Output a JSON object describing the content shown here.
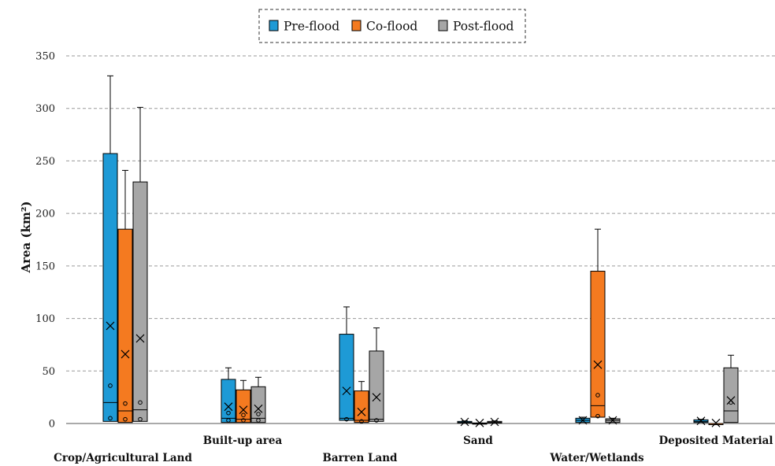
{
  "chart_data": {
    "type": "box",
    "title": "",
    "xlabel": "",
    "ylabel": "Area (km²)",
    "ylim": [
      0,
      350
    ],
    "yticks": [
      0,
      50,
      100,
      150,
      200,
      250,
      300,
      350
    ],
    "grid": true,
    "legend_position": "top-center",
    "categories": [
      "Crop/Agricultural Land",
      "Built-up area",
      "Barren Land",
      "Sand",
      "Water/Wetlands",
      "Deposited Material"
    ],
    "series": [
      {
        "name": "Pre-flood",
        "color": "#1E9AD6",
        "boxes": [
          {
            "min": 0,
            "q1": 2,
            "median": 20,
            "q3": 257,
            "max": 331,
            "mean": 93,
            "points": [
              36,
              5
            ]
          },
          {
            "min": 0,
            "q1": 1,
            "median": 5,
            "q3": 42,
            "max": 53,
            "mean": 16,
            "points": [
              10,
              3
            ]
          },
          {
            "min": 0,
            "q1": 3,
            "median": 5,
            "q3": 85,
            "max": 111,
            "mean": 31,
            "points": [
              4
            ]
          },
          {
            "min": 0,
            "q1": 0.5,
            "median": 1,
            "q3": 2,
            "max": 2.5,
            "mean": 1.5,
            "points": []
          },
          {
            "min": 0,
            "q1": 1,
            "median": 3,
            "q3": 5,
            "max": 6,
            "mean": 3,
            "points": []
          },
          {
            "min": 0,
            "q1": 1,
            "median": 2,
            "q3": 3.5,
            "max": 4,
            "mean": 2.5,
            "points": []
          }
        ]
      },
      {
        "name": "Co-flood",
        "color": "#F47A20",
        "boxes": [
          {
            "min": 0,
            "q1": 1,
            "median": 12,
            "q3": 185,
            "max": 241,
            "mean": 66,
            "points": [
              19,
              4
            ]
          },
          {
            "min": 0,
            "q1": 1,
            "median": 4,
            "q3": 32,
            "max": 41,
            "mean": 13,
            "points": [
              8,
              3
            ]
          },
          {
            "min": 0,
            "q1": 1,
            "median": 3,
            "q3": 31,
            "max": 40,
            "mean": 11,
            "points": [
              2
            ]
          },
          {
            "min": 0,
            "q1": 0,
            "median": 0,
            "q3": 0.5,
            "max": 0.5,
            "mean": 0.5,
            "points": []
          },
          {
            "min": 0,
            "q1": 6,
            "median": 17,
            "q3": 145,
            "max": 185,
            "mean": 56,
            "points": [
              27,
              7
            ]
          },
          {
            "min": 0,
            "q1": 0,
            "median": 0,
            "q3": 0,
            "max": 0,
            "mean": 0.5,
            "points": []
          }
        ]
      },
      {
        "name": "Post-flood",
        "color": "#A6A6A6",
        "boxes": [
          {
            "min": 0,
            "q1": 2,
            "median": 13,
            "q3": 230,
            "max": 301,
            "mean": 81,
            "points": [
              20,
              4
            ]
          },
          {
            "min": 0,
            "q1": 1,
            "median": 5,
            "q3": 35,
            "max": 44,
            "mean": 14,
            "points": [
              9,
              3
            ]
          },
          {
            "min": 0,
            "q1": 2,
            "median": 4,
            "q3": 69,
            "max": 91,
            "mean": 25,
            "points": [
              3
            ]
          },
          {
            "min": 0,
            "q1": 0.5,
            "median": 1,
            "q3": 2,
            "max": 2.5,
            "mean": 1.5,
            "points": []
          },
          {
            "min": 0,
            "q1": 1,
            "median": 3,
            "q3": 4.5,
            "max": 5,
            "mean": 3,
            "points": []
          },
          {
            "min": 0,
            "q1": 1,
            "median": 12,
            "q3": 53,
            "max": 65,
            "mean": 22,
            "points": [
              20
            ]
          }
        ]
      }
    ]
  }
}
